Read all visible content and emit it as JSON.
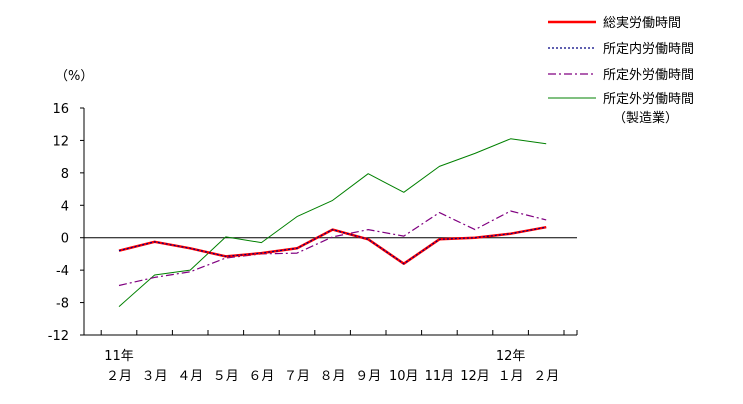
{
  "chart_data": {
    "type": "line",
    "y_unit_label": "（%）",
    "ylim": [
      -12,
      16
    ],
    "yticks": [
      16,
      12,
      8,
      4,
      0,
      -4,
      -8,
      -12
    ],
    "ytick_labels": [
      "16",
      "12",
      "8",
      "4",
      "0",
      "-4",
      "-8",
      "-12"
    ],
    "grid": false,
    "legend_position": "top-right",
    "x_year_labels": [
      {
        "index": 0,
        "label": "11年"
      },
      {
        "index": 11,
        "label": "12年"
      }
    ],
    "categories": [
      "２月",
      "３月",
      "４月",
      "５月",
      "６月",
      "７月",
      "８月",
      "９月",
      "10月",
      "11月",
      "12月",
      "１月",
      "２月"
    ],
    "series": [
      {
        "name": "総実労働時間",
        "color": "#ff0000",
        "style": "solid-thick",
        "values": [
          -1.6,
          -0.5,
          -1.3,
          -2.3,
          -1.9,
          -1.3,
          1.0,
          -0.2,
          -3.2,
          -0.2,
          0.0,
          0.5,
          1.3
        ]
      },
      {
        "name": "所定内労働時間",
        "color": "#000080",
        "style": "dotted",
        "values": [
          -1.6,
          -0.5,
          -1.3,
          -2.3,
          -1.9,
          -1.3,
          1.0,
          -0.2,
          -3.2,
          -0.2,
          0.0,
          0.5,
          1.3
        ]
      },
      {
        "name": "所定外労働時間",
        "color": "#800080",
        "style": "dashdot",
        "values": [
          -5.9,
          -4.9,
          -4.2,
          -2.5,
          -2.0,
          -1.9,
          0.1,
          1.0,
          0.2,
          3.1,
          1.0,
          3.3,
          2.2
        ]
      },
      {
        "name": "所定外労働時間",
        "name_line2": "（製造業）",
        "color": "#008000",
        "style": "solid-thin",
        "values": [
          -8.5,
          -4.6,
          -4.0,
          0.1,
          -0.6,
          2.6,
          4.6,
          7.9,
          5.6,
          8.8,
          10.4,
          12.2,
          11.6
        ]
      }
    ]
  }
}
